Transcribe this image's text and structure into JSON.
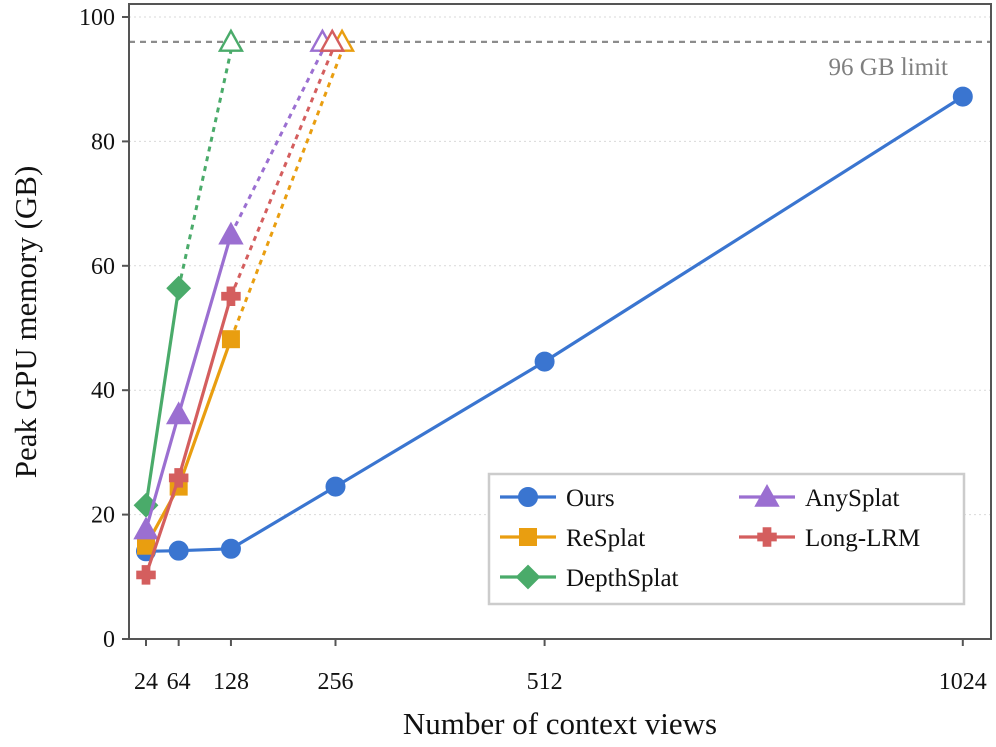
{
  "chart_data": {
    "type": "line",
    "xlabel": "Number of context views",
    "ylabel": "Peak GPU memory (GB)",
    "ylim": [
      0,
      100
    ],
    "xticks": [
      24,
      64,
      128,
      256,
      512,
      1024
    ],
    "yticks": [
      0,
      20,
      40,
      60,
      80,
      100
    ],
    "grid": "horizontal dotted",
    "legend_position": "lower-right",
    "limit": {
      "value": 96,
      "label": "96 GB limit",
      "color": "#8c8c8c"
    },
    "series": [
      {
        "name": "Ours",
        "color": "#3a75d0",
        "marker": "circle",
        "x": [
          24,
          64,
          128,
          256,
          512,
          1024
        ],
        "y": [
          14.1,
          14.2,
          14.5,
          24.5,
          44.6,
          87.2
        ]
      },
      {
        "name": "ReSplat",
        "color": "#e99e10",
        "marker": "square",
        "x": [
          24,
          64,
          128
        ],
        "y": [
          15.0,
          24.5,
          48.2
        ],
        "oom": {
          "from_x": 128,
          "from_y": 48.2,
          "x": 264,
          "y": 96
        }
      },
      {
        "name": "DepthSplat",
        "color": "#4aab6a",
        "marker": "diamond",
        "x": [
          24,
          64
        ],
        "y": [
          21.5,
          56.4
        ],
        "oom": {
          "from_x": 64,
          "from_y": 56.4,
          "x": 128,
          "y": 96
        }
      },
      {
        "name": "AnySplat",
        "color": "#9b6fd1",
        "marker": "triangle",
        "x": [
          24,
          64,
          128
        ],
        "y": [
          17.6,
          36.1,
          65.0
        ],
        "oom": {
          "from_x": 128,
          "from_y": 65.0,
          "x": 240,
          "y": 96
        }
      },
      {
        "name": "Long-LRM",
        "color": "#d45e5e",
        "marker": "plus",
        "x": [
          24,
          64,
          128
        ],
        "y": [
          10.3,
          25.9,
          55.1
        ],
        "oom": {
          "from_x": 128,
          "from_y": 55.1,
          "x": 252,
          "y": 96
        }
      }
    ]
  }
}
